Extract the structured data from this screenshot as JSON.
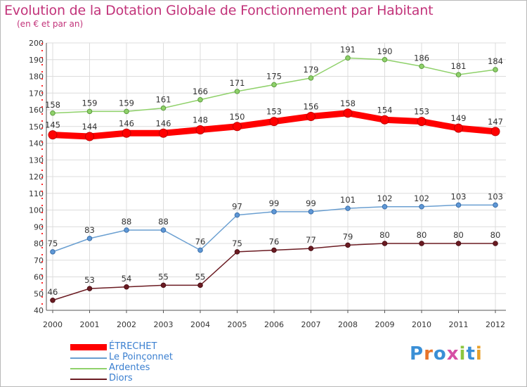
{
  "header": {
    "title": "Evolution de la Dotation Globale de Fonctionnement par Habitant",
    "subtitle": "(en € et par an)"
  },
  "brand": {
    "text": "Proxiti",
    "letters": [
      "P",
      "r",
      "o",
      "x",
      "i",
      "t",
      "i"
    ],
    "colors": [
      "#3a8fd6",
      "#e8742a",
      "#3a8fd6",
      "#d64fa5",
      "#8cc63f",
      "#3a8fd6",
      "#e8a02a"
    ]
  },
  "chart_data": {
    "type": "line",
    "title": "Evolution de la Dotation Globale de Fonctionnement par Habitant",
    "subtitle": "(en € et par an)",
    "xlabel": "",
    "ylabel": "",
    "x": [
      "2000",
      "2001",
      "2002",
      "2003",
      "2004",
      "2005",
      "2006",
      "2007",
      "2008",
      "2009",
      "2010",
      "2011",
      "2012"
    ],
    "ylim": [
      40,
      200
    ],
    "yticks": [
      40,
      50,
      60,
      70,
      80,
      90,
      100,
      110,
      120,
      130,
      140,
      150,
      160,
      170,
      180,
      190,
      200
    ],
    "grid": true,
    "legend_position": "bottom-left",
    "series": [
      {
        "name": "Ardentes",
        "color": "#8fd16a",
        "marker_fill": "#8fd16a",
        "marker_stroke": "#5b9a3e",
        "bold": false,
        "values": [
          158,
          159,
          159,
          161,
          166,
          171,
          175,
          179,
          191,
          190,
          186,
          181,
          184
        ]
      },
      {
        "name": "Le Poinçonnet",
        "color": "#6a9fd1",
        "marker_fill": "#5e97d6",
        "marker_stroke": "#3a6ea8",
        "bold": false,
        "values": [
          75,
          83,
          88,
          88,
          76,
          97,
          99,
          99,
          101,
          102,
          102,
          103,
          103
        ]
      },
      {
        "name": "Diors",
        "color": "#6b1b22",
        "marker_fill": "#6b1b22",
        "marker_stroke": "#4a0f15",
        "bold": false,
        "values": [
          46,
          53,
          54,
          55,
          55,
          75,
          76,
          77,
          79,
          80,
          80,
          80,
          80
        ]
      },
      {
        "name": "ÉTRECHET",
        "color": "#ff0000",
        "marker_fill": "#ff0000",
        "marker_stroke": "#c00000",
        "bold": true,
        "values": [
          145,
          144,
          146,
          146,
          148,
          150,
          153,
          156,
          158,
          154,
          153,
          149,
          147
        ]
      }
    ],
    "legend_order": [
      "ÉTRECHET",
      "Le Poinçonnet",
      "Ardentes",
      "Diors"
    ]
  }
}
